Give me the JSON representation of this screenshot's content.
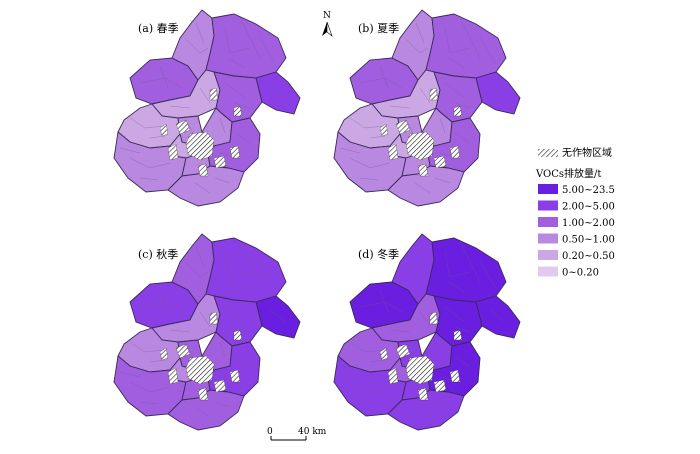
{
  "panels": [
    {
      "label": "(a) 春季",
      "level_index": 3
    },
    {
      "label": "(b) 夏季",
      "level_index": 3
    },
    {
      "label": "(c) 秋季",
      "level_index": 2
    },
    {
      "label": "(d) 冬季",
      "level_index": 1
    }
  ],
  "north_arrow": {
    "label": "N"
  },
  "scale_bar": {
    "zero": "0",
    "end": "40 km"
  },
  "legend": {
    "hatch_label": "无作物区域",
    "title": "VOCs排放量/t",
    "classes": [
      {
        "label": "5.00~23.5",
        "color": "#6a1fe0"
      },
      {
        "label": "2.00~5.00",
        "color": "#8a3ee6"
      },
      {
        "label": "1.00~2.00",
        "color": "#a15fe0"
      },
      {
        "label": "0.50~1.00",
        "color": "#b988e0"
      },
      {
        "label": "0.20~0.50",
        "color": "#cba8e3"
      },
      {
        "label": "0~0.20",
        "color": "#e2c9ef"
      }
    ]
  },
  "colors": {
    "boundary": "#3a2a5a",
    "hatch": "#222222"
  }
}
